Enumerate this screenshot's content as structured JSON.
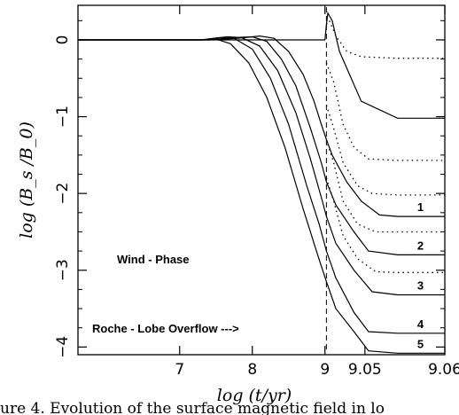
{
  "chart_data": {
    "type": "line",
    "xlabel": "log (t/yr)",
    "ylabel": "log (B_s /B_0)",
    "ylim": [
      -4.1,
      0.45
    ],
    "x_ticks": [
      "7",
      "8",
      "9",
      "9.05",
      "9.06"
    ],
    "y_ticks": [
      "0",
      "−1",
      "−2",
      "−3",
      "−4"
    ],
    "x_positions": [
      0,
      1,
      2,
      2.55,
      3.65
    ],
    "transition_x": 2.02,
    "grid": false,
    "annotations": {
      "wind_phase": "Wind - Phase",
      "rlof": "Roche - Lobe Overflow --->"
    },
    "caption_fragment": "ure 4. Evolution of the surface magnetic field in lo",
    "series": [
      {
        "label": "",
        "style": "solid",
        "points": [
          [
            -1.4,
            0
          ],
          [
            1.4,
            0
          ],
          [
            2.0,
            0
          ],
          [
            2.02,
            0.2
          ],
          [
            2.04,
            0.35
          ],
          [
            2.1,
            0.25
          ],
          [
            2.2,
            -0.15
          ],
          [
            2.5,
            -0.8
          ],
          [
            3.0,
            -1.02
          ],
          [
            3.65,
            -1.02
          ]
        ]
      },
      {
        "label": "",
        "style": "dotted",
        "points": [
          [
            2.02,
            0.2
          ],
          [
            2.06,
            0.25
          ],
          [
            2.15,
            0.05
          ],
          [
            2.3,
            -0.15
          ],
          [
            2.5,
            -0.22
          ],
          [
            3.0,
            -0.24
          ],
          [
            3.65,
            -0.24
          ]
        ]
      },
      {
        "label": "1",
        "style": "solid",
        "points": [
          [
            -1.4,
            0
          ],
          [
            0.4,
            0
          ],
          [
            0.8,
            0.02
          ],
          [
            1.1,
            0.05
          ],
          [
            1.3,
            0.02
          ],
          [
            1.5,
            -0.15
          ],
          [
            1.7,
            -0.45
          ],
          [
            1.85,
            -0.8
          ],
          [
            1.95,
            -1.1
          ],
          [
            2.02,
            -1.3
          ],
          [
            2.1,
            -1.5
          ],
          [
            2.3,
            -1.85
          ],
          [
            2.5,
            -2.1
          ],
          [
            2.75,
            -2.28
          ],
          [
            3.0,
            -2.3
          ],
          [
            3.65,
            -2.3
          ]
        ]
      },
      {
        "label": "",
        "style": "dotted",
        "points": [
          [
            2.02,
            -0.3
          ],
          [
            2.12,
            -0.55
          ],
          [
            2.25,
            -1.1
          ],
          [
            2.4,
            -1.4
          ],
          [
            2.6,
            -1.55
          ],
          [
            3.0,
            -1.57
          ],
          [
            3.65,
            -1.57
          ]
        ]
      },
      {
        "label": "2",
        "style": "solid",
        "points": [
          [
            -1.4,
            0
          ],
          [
            0.4,
            0
          ],
          [
            0.75,
            0.03
          ],
          [
            1.0,
            0.04
          ],
          [
            1.2,
            -0.02
          ],
          [
            1.4,
            -0.25
          ],
          [
            1.6,
            -0.6
          ],
          [
            1.8,
            -1.15
          ],
          [
            1.95,
            -1.6
          ],
          [
            2.02,
            -1.85
          ],
          [
            2.15,
            -2.15
          ],
          [
            2.4,
            -2.5
          ],
          [
            2.6,
            -2.75
          ],
          [
            3.0,
            -2.8
          ],
          [
            3.65,
            -2.8
          ]
        ]
      },
      {
        "label": "",
        "style": "dotted",
        "points": [
          [
            2.02,
            -0.85
          ],
          [
            2.12,
            -1.15
          ],
          [
            2.25,
            -1.6
          ],
          [
            2.45,
            -1.9
          ],
          [
            2.65,
            -2.0
          ],
          [
            3.0,
            -2.02
          ],
          [
            3.65,
            -2.02
          ]
        ]
      },
      {
        "label": "3",
        "style": "solid",
        "points": [
          [
            -1.4,
            0
          ],
          [
            0.3,
            0
          ],
          [
            0.65,
            0.04
          ],
          [
            0.85,
            0.03
          ],
          [
            1.1,
            -0.08
          ],
          [
            1.35,
            -0.4
          ],
          [
            1.6,
            -0.95
          ],
          [
            1.8,
            -1.55
          ],
          [
            1.95,
            -2.05
          ],
          [
            2.02,
            -2.3
          ],
          [
            2.15,
            -2.65
          ],
          [
            2.4,
            -3.0
          ],
          [
            2.65,
            -3.28
          ],
          [
            3.0,
            -3.32
          ],
          [
            3.65,
            -3.32
          ]
        ]
      },
      {
        "label": "",
        "style": "dotted",
        "points": [
          [
            2.02,
            -1.3
          ],
          [
            2.12,
            -1.6
          ],
          [
            2.25,
            -2.1
          ],
          [
            2.45,
            -2.4
          ],
          [
            2.7,
            -2.5
          ],
          [
            3.0,
            -2.5
          ],
          [
            3.65,
            -2.5
          ]
        ]
      },
      {
        "label": "4",
        "style": "solid",
        "points": [
          [
            -1.4,
            0
          ],
          [
            0.3,
            0
          ],
          [
            0.55,
            0.03
          ],
          [
            0.75,
            0.02
          ],
          [
            1.0,
            -0.12
          ],
          [
            1.25,
            -0.5
          ],
          [
            1.5,
            -1.1
          ],
          [
            1.75,
            -1.9
          ],
          [
            1.92,
            -2.4
          ],
          [
            2.02,
            -2.75
          ],
          [
            2.15,
            -3.1
          ],
          [
            2.4,
            -3.55
          ],
          [
            2.6,
            -3.8
          ],
          [
            3.0,
            -3.82
          ],
          [
            3.65,
            -3.82
          ]
        ]
      },
      {
        "label": "",
        "style": "dotted",
        "points": [
          [
            2.02,
            -1.8
          ],
          [
            2.12,
            -2.1
          ],
          [
            2.25,
            -2.55
          ],
          [
            2.45,
            -2.85
          ],
          [
            2.7,
            -3.02
          ],
          [
            3.0,
            -3.03
          ],
          [
            3.65,
            -3.03
          ]
        ]
      },
      {
        "label": "5",
        "style": "solid",
        "points": [
          [
            -1.4,
            0
          ],
          [
            0.3,
            0
          ],
          [
            0.5,
            0.01
          ],
          [
            0.7,
            -0.05
          ],
          [
            0.95,
            -0.3
          ],
          [
            1.2,
            -0.75
          ],
          [
            1.45,
            -1.4
          ],
          [
            1.7,
            -2.2
          ],
          [
            1.9,
            -2.8
          ],
          [
            2.02,
            -3.15
          ],
          [
            2.15,
            -3.5
          ],
          [
            2.4,
            -3.8
          ],
          [
            2.6,
            -4.05
          ],
          [
            3.0,
            -4.08
          ],
          [
            3.65,
            -4.08
          ]
        ]
      }
    ]
  }
}
